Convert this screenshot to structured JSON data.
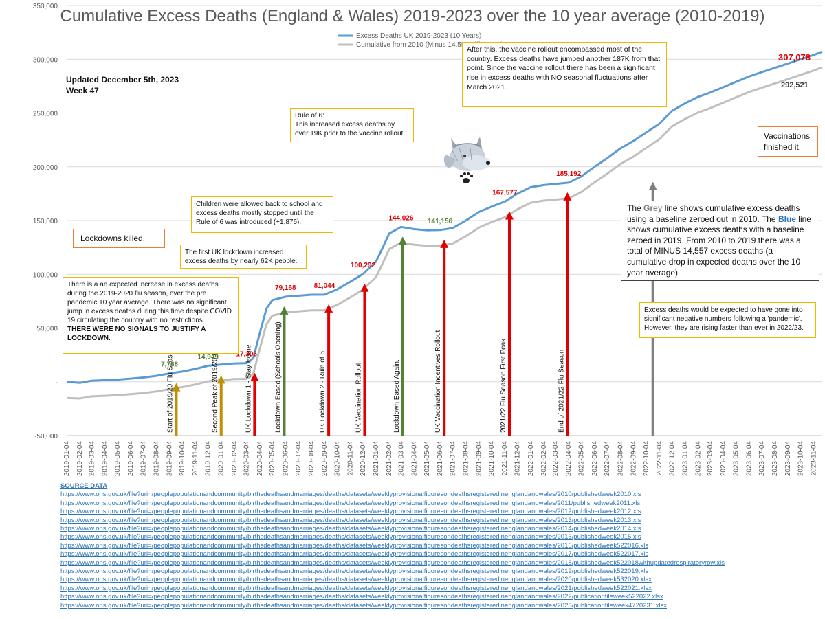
{
  "chart_data": {
    "type": "line",
    "title": "Cumulative Excess Deaths (England & Wales) 2019-2023 over the 10 year average (2010-2019)",
    "ylim": [
      -50000,
      350000
    ],
    "yticks": [
      -50000,
      0,
      50000,
      100000,
      150000,
      200000,
      250000,
      300000,
      350000
    ],
    "ytick_labels": [
      "-50,000",
      "-",
      "50,000",
      "100,000",
      "150,000",
      "200,000",
      "250,000",
      "300,000",
      "350,000"
    ],
    "x_labels": [
      "2019-01-04",
      "2019-02-04",
      "2019-03-04",
      "2019-04-04",
      "2019-05-04",
      "2019-06-04",
      "2019-07-04",
      "2019-08-04",
      "2019-09-04",
      "2019-10-04",
      "2019-11-04",
      "2019-12-04",
      "2020-01-04",
      "2020-02-04",
      "2020-03-04",
      "2020-04-04",
      "2020-05-04",
      "2020-06-04",
      "2020-07-04",
      "2020-08-04",
      "2020-09-04",
      "2020-10-04",
      "2020-11-04",
      "2020-12-04",
      "2021-01-04",
      "2021-02-04",
      "2021-03-04",
      "2021-04-04",
      "2021-05-04",
      "2021-06-04",
      "2021-07-04",
      "2021-08-04",
      "2021-09-04",
      "2021-10-04",
      "2021-11-04",
      "2021-12-04",
      "2022-01-04",
      "2022-02-04",
      "2022-03-04",
      "2022-04-04",
      "2022-05-04",
      "2022-06-04",
      "2022-07-04",
      "2022-08-04",
      "2022-09-04",
      "2022-10-04",
      "2022-11-04",
      "2022-12-04",
      "2023-01-04",
      "2023-02-04",
      "2023-03-04",
      "2023-04-04",
      "2023-05-04",
      "2023-06-04",
      "2023-07-04",
      "2023-08-04",
      "2023-09-04",
      "2023-10-04",
      "2023-11-04"
    ],
    "grid": true,
    "legend": "top-center",
    "series": [
      {
        "name": "Excess Deaths UK 2019-2023 (10 Years)",
        "color": "#5b9bd5",
        "x": [
          "2019-01-04",
          "2019-02-04",
          "2019-03-04",
          "2019-04-04",
          "2019-05-04",
          "2019-06-04",
          "2019-07-04",
          "2019-08-04",
          "2019-09-04",
          "2019-10-04",
          "2019-11-04",
          "2019-12-04",
          "2020-01-04",
          "2020-02-04",
          "2020-03-04",
          "2020-03-20",
          "2020-04-04",
          "2020-04-20",
          "2020-05-04",
          "2020-06-04",
          "2020-07-04",
          "2020-08-04",
          "2020-09-04",
          "2020-10-04",
          "2020-11-04",
          "2020-12-04",
          "2021-01-04",
          "2021-01-20",
          "2021-02-04",
          "2021-03-04",
          "2021-04-04",
          "2021-05-04",
          "2021-06-04",
          "2021-07-04",
          "2021-08-04",
          "2021-09-04",
          "2021-10-04",
          "2021-11-04",
          "2021-12-04",
          "2022-01-04",
          "2022-02-04",
          "2022-03-04",
          "2022-04-04",
          "2022-05-04",
          "2022-06-04",
          "2022-07-04",
          "2022-08-04",
          "2022-09-04",
          "2022-10-04",
          "2022-11-04",
          "2022-12-04",
          "2023-01-04",
          "2023-02-04",
          "2023-03-04",
          "2023-04-04",
          "2023-05-04",
          "2023-06-04",
          "2023-07-04",
          "2023-08-04",
          "2023-09-04",
          "2023-10-04",
          "2023-11-04",
          "2023-11-24"
        ],
        "values": [
          0,
          -1000,
          1000,
          1500,
          2000,
          3000,
          4000,
          5500,
          7768,
          9500,
          12000,
          14949,
          16000,
          17000,
          17306,
          22000,
          45000,
          68000,
          76000,
          79168,
          80000,
          81000,
          81044,
          86000,
          93000,
          100292,
          112000,
          125000,
          138000,
          144026,
          142000,
          141000,
          141156,
          143000,
          150000,
          158000,
          163000,
          167577,
          175000,
          181000,
          183000,
          184000,
          185192,
          191000,
          200000,
          208000,
          217000,
          224000,
          232000,
          240000,
          252000,
          259000,
          265000,
          269000,
          274000,
          279000,
          284000,
          288000,
          292000,
          296000,
          300000,
          304000,
          307078
        ]
      },
      {
        "name": "Cumulative from 2010 (Minus 14,557 difference)",
        "color": "#bfbfbf",
        "x": [
          "2019-01-04",
          "2019-02-04",
          "2019-03-04",
          "2019-04-04",
          "2019-05-04",
          "2019-06-04",
          "2019-07-04",
          "2019-08-04",
          "2019-09-04",
          "2019-10-04",
          "2019-11-04",
          "2019-12-04",
          "2020-01-04",
          "2020-02-04",
          "2020-03-04",
          "2020-03-20",
          "2020-04-04",
          "2020-04-20",
          "2020-05-04",
          "2020-06-04",
          "2020-07-04",
          "2020-08-04",
          "2020-09-04",
          "2020-10-04",
          "2020-11-04",
          "2020-12-04",
          "2021-01-04",
          "2021-01-20",
          "2021-02-04",
          "2021-03-04",
          "2021-04-04",
          "2021-05-04",
          "2021-06-04",
          "2021-07-04",
          "2021-08-04",
          "2021-09-04",
          "2021-10-04",
          "2021-11-04",
          "2021-12-04",
          "2022-01-04",
          "2022-02-04",
          "2022-03-04",
          "2022-04-04",
          "2022-05-04",
          "2022-06-04",
          "2022-07-04",
          "2022-08-04",
          "2022-09-04",
          "2022-10-04",
          "2022-11-04",
          "2022-12-04",
          "2023-01-04",
          "2023-02-04",
          "2023-03-04",
          "2023-04-04",
          "2023-05-04",
          "2023-06-04",
          "2023-07-04",
          "2023-08-04",
          "2023-09-04",
          "2023-10-04",
          "2023-11-04",
          "2023-11-24"
        ],
        "values": [
          -15000,
          -15500,
          -13500,
          -13000,
          -12500,
          -11500,
          -10500,
          -9000,
          -6800,
          -5000,
          -2500,
          400,
          1500,
          2500,
          2700,
          7500,
          30500,
          53500,
          61500,
          64600,
          65500,
          66500,
          66500,
          71500,
          78500,
          85700,
          97500,
          110500,
          123500,
          129500,
          127500,
          126500,
          126600,
          128500,
          135500,
          143500,
          148500,
          153000,
          160500,
          166500,
          168500,
          169500,
          170600,
          176500,
          185500,
          193500,
          202500,
          209500,
          217500,
          225500,
          237500,
          244500,
          250500,
          254500,
          259500,
          264500,
          269500,
          273500,
          277500,
          281500,
          285500,
          289500,
          292521
        ]
      }
    ],
    "point_labels": [
      {
        "x": "2019-09-04",
        "y": 7768,
        "text": "7,768",
        "color": "#548235"
      },
      {
        "x": "2019-12-04",
        "y": 14949,
        "text": "14,949",
        "color": "#548235"
      },
      {
        "x": "2020-03-04",
        "y": 17306,
        "text": "17,306",
        "color": "#e00000"
      },
      {
        "x": "2020-06-04",
        "y": 79168,
        "text": "79,168",
        "color": "#e00000"
      },
      {
        "x": "2020-09-04",
        "y": 81044,
        "text": "81,044",
        "color": "#e00000"
      },
      {
        "x": "2020-12-04",
        "y": 100292,
        "text": "100,292",
        "color": "#e00000"
      },
      {
        "x": "2021-03-04",
        "y": 144026,
        "text": "144,026",
        "color": "#e00000"
      },
      {
        "x": "2021-06-04",
        "y": 141156,
        "text": "141,156",
        "color": "#548235"
      },
      {
        "x": "2021-11-04",
        "y": 167577,
        "text": "167,577",
        "color": "#e00000"
      },
      {
        "x": "2022-04-04",
        "y": 185192,
        "text": "185,192",
        "color": "#e00000"
      }
    ],
    "end_labels": {
      "blue": "307,078",
      "grey": "292,521"
    },
    "arrows": [
      {
        "x": "2019-09-20",
        "top": 7768,
        "color": "#bf9000",
        "text": "Start of 2019/20 Flu Season"
      },
      {
        "x": "2020-01-04",
        "top": 14949,
        "color": "#bf9000",
        "text": "Second Peak of 2019/20 Flu Season"
      },
      {
        "x": "2020-03-23",
        "top": 17306,
        "color": "#e00000",
        "text": "UK Lockdown 1 - Stay Home"
      },
      {
        "x": "2020-06-01",
        "top": 79168,
        "color": "#548235",
        "text": "Lockdown Eased (Schools Opening)"
      },
      {
        "x": "2020-09-14",
        "top": 81044,
        "color": "#e00000",
        "text": "UK Lockdown 2 - Rule of 6"
      },
      {
        "x": "2020-12-08",
        "top": 100292,
        "color": "#e00000",
        "text": "UK Vaccination Rollout"
      },
      {
        "x": "2021-03-08",
        "top": 144026,
        "color": "#548235",
        "text": "Lockdown Eased Again."
      },
      {
        "x": "2021-06-14",
        "top": 141156,
        "color": "#e00000",
        "text": "UK Vaccination Incentives Rollout"
      },
      {
        "x": "2021-11-15",
        "top": 167577,
        "color": "#e00000",
        "text": "2021/22 Flu Season First Peak"
      },
      {
        "x": "2022-04-01",
        "top": 185192,
        "color": "#e00000",
        "text": "End of 2021/22 Flu Season"
      }
    ],
    "grey_arrow": {
      "x": "2022-10-20",
      "top": 200000,
      "color": "#7f7f7f"
    }
  },
  "updated": {
    "line1": "Updated December 5th, 2023",
    "line2": "Week 47"
  },
  "annotations": {
    "vaccine_rollout": "After this, the vaccine rollout encompassed most of the country. Excess deaths have jumped another 187K from that point. Since the vaccine rollout there has been a significant rise in excess deaths with NO seasonal fluctuations after March 2021.",
    "rule_of_6_title": "Rule of 6:",
    "rule_of_6_body": "This increased excess deaths by over 19K prior to the vaccine rollout",
    "vaccinations": "Vaccinations finished it.",
    "children": "Children were allowed back to school and excess deaths mostly stopped until the Rule of 6 was introduced (+1,876).",
    "lockdowns_killed": "Lockdowns killed.",
    "first_lockdown": "The first UK lockdown increased excess deaths by nearly 62K people.",
    "flu_season": "There is a an expected increase in excess deaths during the 2019-2020 flu season, over the pre pandemic 10 year average. There was no significant jump in excess deaths during this time despite COVID 19 circulating the country with no restrictions.",
    "no_signals": "THERE WERE NO SIGNALS TO JUSTIFY A LOCKDOWN.",
    "grey_line_pre": "The ",
    "grey_word": "Grey",
    "grey_line_mid": " line shows cumulative excess deaths using a baseline zeroed out in 2010. The ",
    "blue_word": "Blue",
    "grey_line_post": " line shows cumulative excess deaths with a baseline zeroed in 2019. From 2010 to 2019 there was a total of MINUS 14,557 excess deaths (a cumulative drop in expected deaths over the 10 year average).",
    "negative_numbers": "Excess deaths would be expected to have gone into significant negative numbers following a 'pandemic'. However, they are rising faster than ever in 2022/23."
  },
  "sources": {
    "header": "SOURCE DATA",
    "links": [
      "https://www.ons.gov.uk/file?uri=/peoplepopulationandcommunity/birthsdeathsandmarriages/deaths/datasets/weeklyprovisionalfiguresondeathsregisteredinenglandandwales/2010/publishedweek2010.xls",
      "https://www.ons.gov.uk/file?uri=/peoplepopulationandcommunity/birthsdeathsandmarriages/deaths/datasets/weeklyprovisionalfiguresondeathsregisteredinenglandandwales/2011/publishedweek2011.xls",
      "https://www.ons.gov.uk/file?uri=/peoplepopulationandcommunity/birthsdeathsandmarriages/deaths/datasets/weeklyprovisionalfiguresondeathsregisteredinenglandandwales/2012/publishedweek2012.xls",
      "https://www.ons.gov.uk/file?uri=/peoplepopulationandcommunity/birthsdeathsandmarriages/deaths/datasets/weeklyprovisionalfiguresondeathsregisteredinenglandandwales/2013/publishedweek2013.xls",
      "https://www.ons.gov.uk/file?uri=/peoplepopulationandcommunity/birthsdeathsandmarriages/deaths/datasets/weeklyprovisionalfiguresondeathsregisteredinenglandandwales/2014/publishedweek2014.xls",
      "https://www.ons.gov.uk/file?uri=/peoplepopulationandcommunity/birthsdeathsandmarriages/deaths/datasets/weeklyprovisionalfiguresondeathsregisteredinenglandandwales/2015/publishedweek2015.xls",
      "https://www.ons.gov.uk/file?uri=/peoplepopulationandcommunity/birthsdeathsandmarriages/deaths/datasets/weeklyprovisionalfiguresondeathsregisteredinenglandandwales/2016/publishedweek522016.xls",
      "https://www.ons.gov.uk/file?uri=/peoplepopulationandcommunity/birthsdeathsandmarriages/deaths/datasets/weeklyprovisionalfiguresondeathsregisteredinenglandandwales/2017/publishedweek522017.xls",
      "https://www.ons.gov.uk/file?uri=/peoplepopulationandcommunity/birthsdeathsandmarriages/deaths/datasets/weeklyprovisionalfiguresondeathsregisteredinenglandandwales/2018/publishedweek522018withupdatedrespiratoryrow.xls",
      "https://www.ons.gov.uk/file?uri=/peoplepopulationandcommunity/birthsdeathsandmarriages/deaths/datasets/weeklyprovisionalfiguresondeathsregisteredinenglandandwales/2019/publishedweek522019.xls",
      "https://www.ons.gov.uk/file?uri=/peoplepopulationandcommunity/birthsdeathsandmarriages/deaths/datasets/weeklyprovisionalfiguresondeathsregisteredinenglandandwales/2020/publishedweek532020.xlsx",
      "https://www.ons.gov.uk/file?uri=/peoplepopulationandcommunity/birthsdeathsandmarriages/deaths/datasets/weeklyprovisionalfiguresondeathsregisteredinenglandandwales/2021/publishedweek522021.xlsx",
      "https://www.ons.gov.uk/file?uri=/peoplepopulationandcommunity/birthsdeathsandmarriages/deaths/datasets/weeklyprovisionalfiguresondeathsregisteredinenglandandwales/2022/publicationfileweek522022.xlsx",
      "https://www.ons.gov.uk/file?uri=/peoplepopulationandcommunity/birthsdeathsandmarriages/deaths/datasets/weeklyprovisionalfiguresondeathsregisteredinenglandandwales/2023/publicationfileweek4720231.xlsx"
    ]
  },
  "wolf_image": {
    "icon": "wolf-head-icon",
    "paw_icon": "paw-print-icon"
  }
}
